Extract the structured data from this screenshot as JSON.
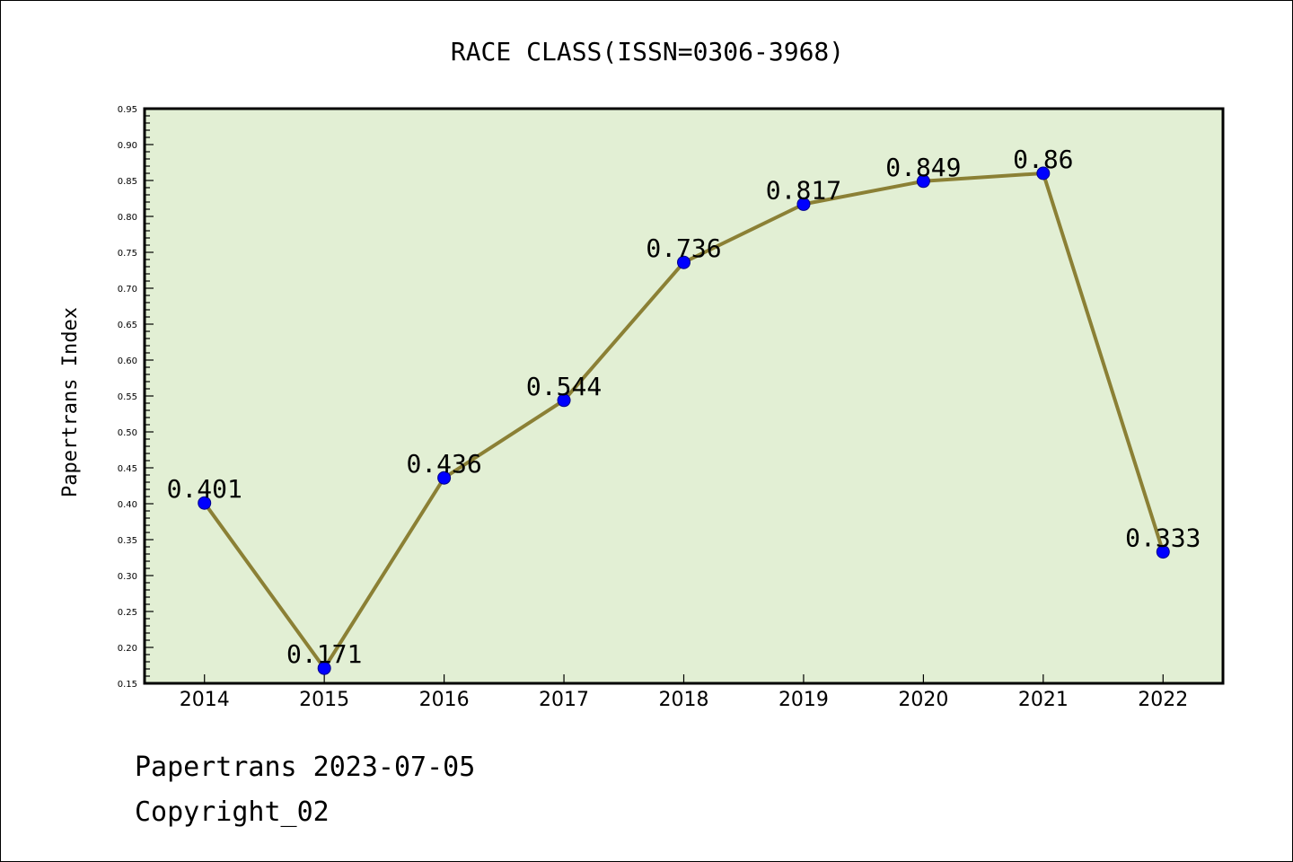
{
  "chart_data": {
    "type": "line",
    "title": "RACE CLASS(ISSN=0306-3968)",
    "xlabel": "",
    "ylabel": "Papertrans Index",
    "categories": [
      "2014",
      "2015",
      "2016",
      "2017",
      "2018",
      "2019",
      "2020",
      "2021",
      "2022"
    ],
    "values": [
      0.401,
      0.171,
      0.436,
      0.544,
      0.736,
      0.817,
      0.849,
      0.86,
      0.333
    ],
    "data_labels": [
      "0.401",
      "0.171",
      "0.436",
      "0.544",
      "0.736",
      "0.817",
      "0.849",
      "0.86",
      "0.333"
    ],
    "ylim": [
      0.15,
      0.95
    ],
    "yticks": [
      "0.15",
      "0.20",
      "0.25",
      "0.30",
      "0.35",
      "0.40",
      "0.45",
      "0.50",
      "0.55",
      "0.60",
      "0.65",
      "0.70",
      "0.75",
      "0.80",
      "0.85",
      "0.90",
      "0.95"
    ],
    "grid": false,
    "colors": {
      "line": "#8b8035",
      "marker": "#0000ff",
      "plot_bg": "#e2efd4"
    }
  },
  "footer": {
    "line1": "Papertrans 2023-07-05",
    "line2": "Copyright_02"
  }
}
